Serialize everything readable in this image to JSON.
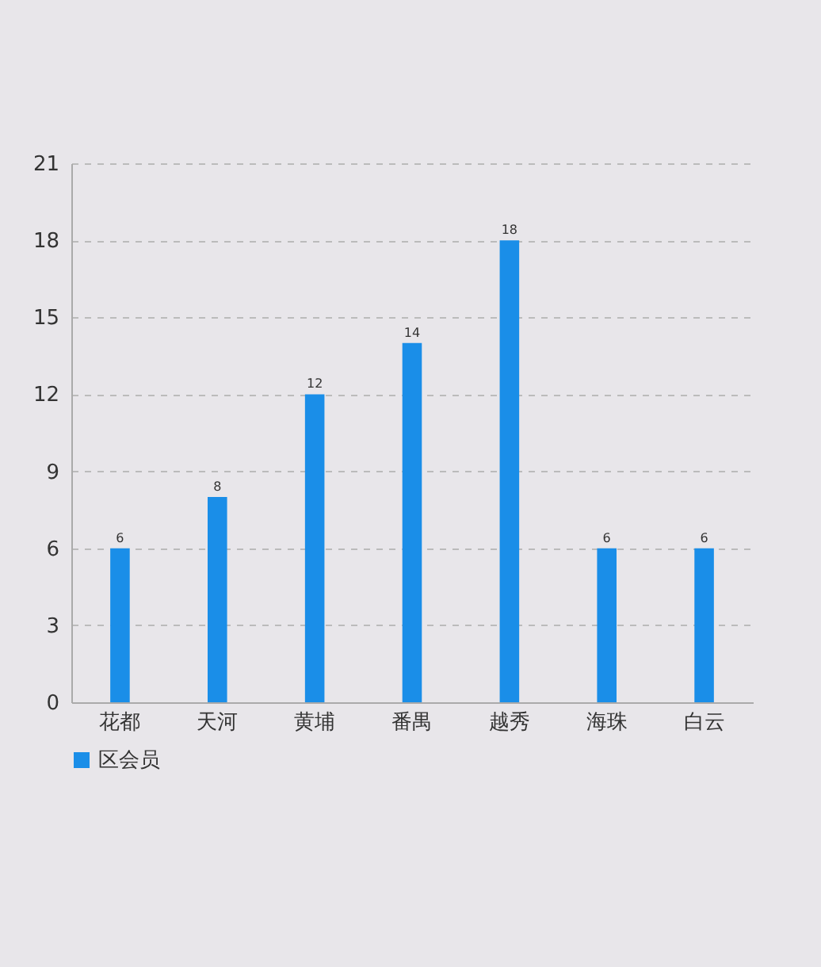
{
  "chart_data": {
    "type": "bar",
    "categories": [
      "花都",
      "天河",
      "黄埔",
      "番禺",
      "越秀",
      "海珠",
      "白云"
    ],
    "series": [
      {
        "name": "区会员",
        "color": "#1a8ee8",
        "values": [
          6,
          8,
          12,
          14,
          18,
          6,
          6
        ]
      }
    ],
    "ylim": [
      0,
      21
    ],
    "yticks": [
      0,
      3,
      6,
      9,
      12,
      15,
      18,
      21
    ],
    "grid": "y",
    "legend": "bottom left",
    "data_labels": true
  }
}
